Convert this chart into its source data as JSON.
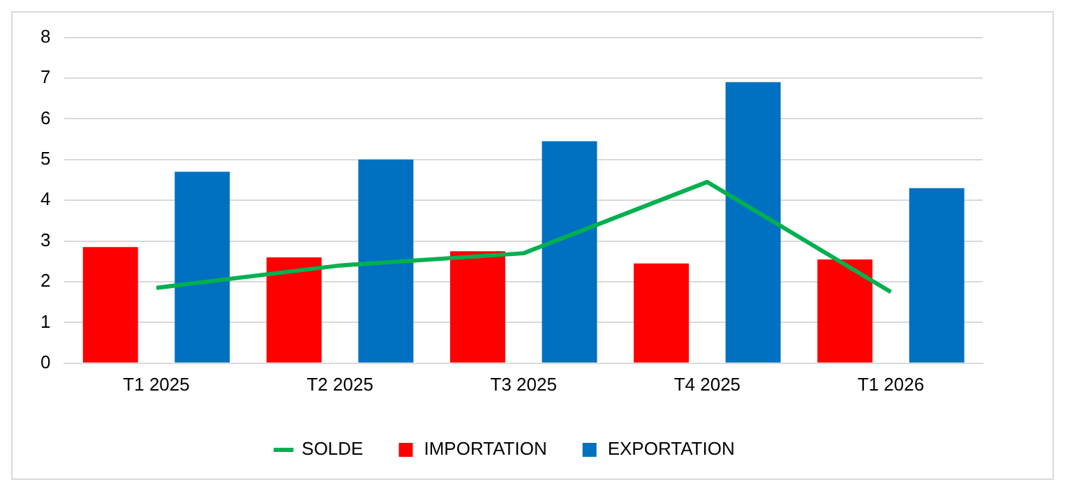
{
  "chart_data": {
    "type": "bar",
    "categories": [
      "T1 2025",
      "T2 2025",
      "T3 2025",
      "T4 2025",
      "T1 2026"
    ],
    "series": [
      {
        "name": "IMPORTATION",
        "color": "#ff0000",
        "values": [
          2.85,
          2.6,
          2.75,
          2.45,
          2.55
        ]
      },
      {
        "name": "EXPORTATION",
        "color": "#0070c0",
        "values": [
          4.7,
          5.0,
          5.45,
          6.9,
          4.3
        ]
      },
      {
        "name": "SOLDE",
        "type": "line",
        "color": "#00b050",
        "values": [
          1.85,
          2.4,
          2.7,
          4.45,
          1.75
        ],
        "marker": "none"
      }
    ],
    "ylim": [
      0,
      8
    ],
    "yticks": [
      0,
      1,
      2,
      3,
      4,
      5,
      6,
      7,
      8
    ],
    "grid": "y",
    "legend": "bottom"
  }
}
